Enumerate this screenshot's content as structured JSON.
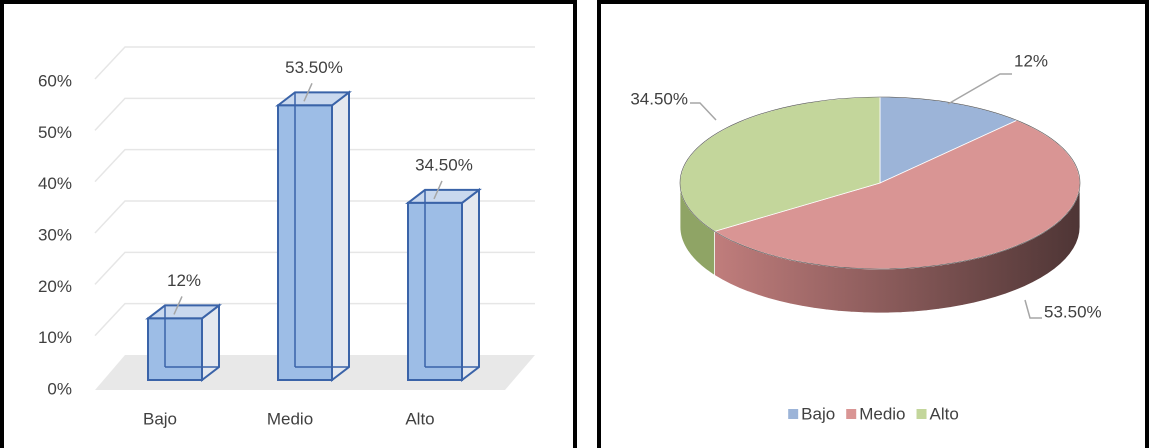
{
  "chart_data": [
    {
      "type": "bar",
      "categories": [
        "Bajo",
        "Medio",
        "Alto"
      ],
      "values": [
        12,
        53.5,
        34.5
      ],
      "value_labels": [
        "12%",
        "53.50%",
        "34.50%"
      ],
      "color": "#9dbde6",
      "ylim": [
        0,
        60
      ],
      "yticks": [
        {
          "value": 0,
          "label": "0%"
        },
        {
          "value": 10,
          "label": "10%"
        },
        {
          "value": 20,
          "label": "20%"
        },
        {
          "value": 30,
          "label": "30%"
        },
        {
          "value": 40,
          "label": "40%"
        },
        {
          "value": 50,
          "label": "50%"
        },
        {
          "value": 60,
          "label": "60%"
        }
      ],
      "grid": true
    },
    {
      "type": "pie",
      "categories": [
        "Bajo",
        "Medio",
        "Alto"
      ],
      "values": [
        12,
        53.5,
        34.5
      ],
      "value_labels": [
        "12%",
        "53.50%",
        "34.50%"
      ],
      "colors": [
        "#9cb4d8",
        "#d99594",
        "#c3d69b"
      ],
      "legend": "bottom"
    }
  ]
}
